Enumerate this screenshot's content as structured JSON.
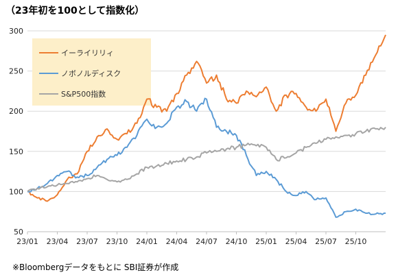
{
  "chart_data": {
    "type": "line",
    "title": "（23年初を100として指数化）",
    "note": "※Bloombergデータをもとに SBI証券が作成",
    "ylim": [
      50,
      300
    ],
    "yticks": [
      50,
      100,
      150,
      200,
      250,
      300
    ],
    "xticks": [
      "23/01",
      "23/04",
      "23/07",
      "23/10",
      "24/01",
      "24/04",
      "24/07",
      "24/10",
      "25/01",
      "25/04",
      "25/07",
      "25/10"
    ],
    "x_months": [
      0,
      1,
      2,
      3,
      4,
      5,
      6,
      7,
      8,
      9,
      10,
      11,
      12,
      13,
      14,
      15,
      16,
      17,
      18,
      19,
      20,
      21,
      22,
      23,
      24,
      25,
      26,
      27,
      28,
      29,
      30,
      31,
      32,
      33,
      34,
      35,
      36
    ],
    "grid": "horizontal",
    "legend_position": "top-left",
    "colors": {
      "background": "#ffffff",
      "legend_bg": "#fdefc9",
      "grid": "#d9d9d9",
      "axis": "#bfbfbf"
    },
    "series": [
      {
        "name": "イーライリリィ",
        "color": "#ed7d31",
        "values": [
          100,
          92,
          88,
          96,
          115,
          122,
          150,
          168,
          178,
          165,
          172,
          185,
          215,
          205,
          200,
          222,
          245,
          262,
          235,
          245,
          215,
          210,
          225,
          218,
          230,
          200,
          220,
          222,
          205,
          200,
          215,
          175,
          210,
          220,
          245,
          270,
          295
        ]
      },
      {
        "name": "ノボノルディスク",
        "color": "#5b9bd5",
        "values": [
          100,
          104,
          110,
          120,
          125,
          118,
          120,
          130,
          140,
          145,
          155,
          170,
          190,
          180,
          185,
          205,
          212,
          200,
          215,
          180,
          175,
          170,
          145,
          120,
          125,
          115,
          100,
          95,
          100,
          90,
          92,
          68,
          75,
          78,
          73,
          72,
          73
        ]
      },
      {
        "name": "S&P500指数",
        "color": "#a5a5a5",
        "values": [
          100,
          104,
          106,
          108,
          110,
          112,
          116,
          120,
          115,
          112,
          115,
          122,
          130,
          132,
          135,
          138,
          140,
          143,
          148,
          150,
          153,
          155,
          158,
          157,
          155,
          140,
          142,
          148,
          155,
          160,
          165,
          168,
          170,
          172,
          175,
          178,
          180
        ]
      }
    ]
  }
}
